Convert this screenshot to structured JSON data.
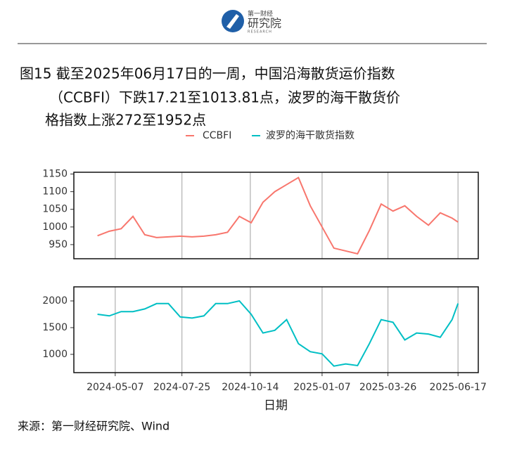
{
  "header": {
    "logo_top": "第一财经",
    "logo_main": "研究院",
    "logo_sub": "RESEARCH"
  },
  "figure": {
    "title_lines": [
      "图15  截至2025年06月17日的一周，中国沿海散货运价指数",
      "（CCBFI）下跌17.21至1013.81点，波罗的海干散货价",
      "格指数上涨272至1952点"
    ],
    "source": "来源：第一财经研究院、Wind"
  },
  "chart_data": [
    {
      "type": "line",
      "xlim": [
        "2024-03-19",
        "2025-07-11"
      ],
      "ylim": [
        910,
        1155
      ],
      "xticks": [
        "2024-05-07",
        "2024-07-25",
        "2024-10-14",
        "2025-01-07",
        "2025-03-26",
        "2025-06-17"
      ],
      "yticks": [
        950,
        1000,
        1050,
        1100,
        1150
      ],
      "grid": true,
      "x": [
        "2024-04-16",
        "2024-04-30",
        "2024-05-14",
        "2024-05-28",
        "2024-06-11",
        "2024-06-25",
        "2024-07-09",
        "2024-07-23",
        "2024-08-06",
        "2024-08-20",
        "2024-09-03",
        "2024-09-17",
        "2024-10-01",
        "2024-10-15",
        "2024-10-29",
        "2024-11-12",
        "2024-11-26",
        "2024-12-10",
        "2024-12-24",
        "2025-01-07",
        "2025-01-21",
        "2025-02-04",
        "2025-02-18",
        "2025-03-04",
        "2025-03-18",
        "2025-04-01",
        "2025-04-15",
        "2025-04-29",
        "2025-05-13",
        "2025-05-27",
        "2025-06-10",
        "2025-06-17"
      ],
      "series": [
        {
          "name": "CCBFI",
          "color": "#f8766d",
          "values": [
            975,
            988,
            995,
            1030,
            978,
            970,
            972,
            974,
            972,
            974,
            978,
            985,
            1030,
            1012,
            1070,
            1100,
            1120,
            1140,
            1060,
            1000,
            940,
            932,
            924,
            990,
            1065,
            1045,
            1060,
            1030,
            1005,
            1040,
            1025,
            1013.81
          ]
        }
      ]
    },
    {
      "type": "line",
      "xlim": [
        "2024-03-19",
        "2025-07-11"
      ],
      "ylim": [
        658,
        2263
      ],
      "xticks": [
        "2024-05-07",
        "2024-07-25",
        "2024-10-14",
        "2025-01-07",
        "2025-03-26",
        "2025-06-17"
      ],
      "yticks": [
        1000,
        1500,
        2000
      ],
      "grid": true,
      "xlabel": "日期",
      "x": [
        "2024-04-16",
        "2024-04-30",
        "2024-05-14",
        "2024-05-28",
        "2024-06-11",
        "2024-06-25",
        "2024-07-09",
        "2024-07-23",
        "2024-08-06",
        "2024-08-20",
        "2024-09-03",
        "2024-09-17",
        "2024-10-01",
        "2024-10-15",
        "2024-10-29",
        "2024-11-12",
        "2024-11-26",
        "2024-12-10",
        "2024-12-24",
        "2025-01-07",
        "2025-01-21",
        "2025-02-04",
        "2025-02-18",
        "2025-03-04",
        "2025-03-18",
        "2025-04-01",
        "2025-04-15",
        "2025-04-29",
        "2025-05-13",
        "2025-05-27",
        "2025-06-10",
        "2025-06-17"
      ],
      "series": [
        {
          "name": "波罗的海干散货指数",
          "color": "#00bfc4",
          "values": [
            1750,
            1720,
            1800,
            1800,
            1850,
            1950,
            1950,
            1700,
            1680,
            1720,
            1950,
            1950,
            2000,
            1750,
            1400,
            1450,
            1650,
            1200,
            1050,
            1010,
            780,
            820,
            790,
            1200,
            1650,
            1600,
            1270,
            1400,
            1380,
            1320,
            1650,
            1952
          ]
        }
      ]
    }
  ]
}
